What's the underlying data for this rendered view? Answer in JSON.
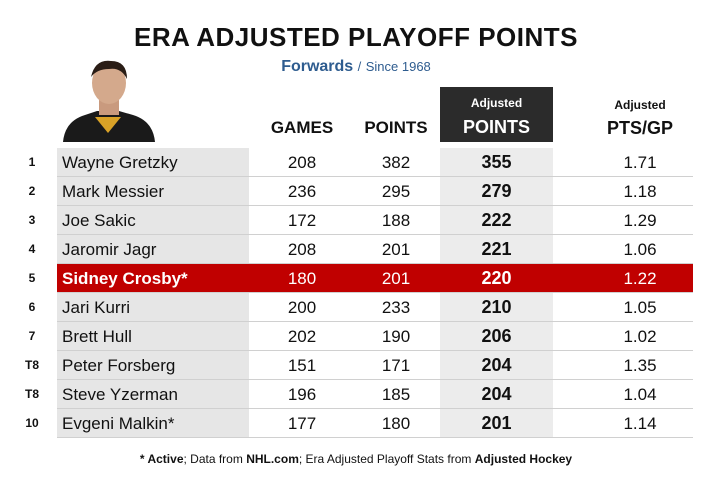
{
  "header": {
    "title": "ERA ADJUSTED PLAYOFF POINTS",
    "subtitle": "Forwards",
    "subtitle_sep": "/",
    "subtitle_note": "Since 1968"
  },
  "table": {
    "columns": {
      "games": "GAMES",
      "points": "POINTS",
      "adj_top": "Adjusted",
      "adj_main": "POINTS",
      "ptsgp_top": "Adjusted",
      "ptsgp_main": "PTS/GP"
    },
    "rows": [
      {
        "rank": "1",
        "name": "Wayne Gretzky",
        "games": 208,
        "points": 382,
        "adj_points": 355,
        "pts_gp": 1.71,
        "highlight": false
      },
      {
        "rank": "2",
        "name": "Mark Messier",
        "games": 236,
        "points": 295,
        "adj_points": 279,
        "pts_gp": 1.18,
        "highlight": false
      },
      {
        "rank": "3",
        "name": "Joe Sakic",
        "games": 172,
        "points": 188,
        "adj_points": 222,
        "pts_gp": 1.29,
        "highlight": false
      },
      {
        "rank": "4",
        "name": "Jaromir Jagr",
        "games": 208,
        "points": 201,
        "adj_points": 221,
        "pts_gp": 1.06,
        "highlight": false
      },
      {
        "rank": "5",
        "name": "Sidney Crosby*",
        "games": 180,
        "points": 201,
        "adj_points": 220,
        "pts_gp": 1.22,
        "highlight": true
      },
      {
        "rank": "6",
        "name": "Jari Kurri",
        "games": 200,
        "points": 233,
        "adj_points": 210,
        "pts_gp": 1.05,
        "highlight": false
      },
      {
        "rank": "7",
        "name": "Brett Hull",
        "games": 202,
        "points": 190,
        "adj_points": 206,
        "pts_gp": 1.02,
        "highlight": false
      },
      {
        "rank": "T8",
        "name": "Peter Forsberg",
        "games": 151,
        "points": 171,
        "adj_points": 204,
        "pts_gp": 1.35,
        "highlight": false
      },
      {
        "rank": "T8",
        "name": "Steve Yzerman",
        "games": 196,
        "points": 185,
        "adj_points": 204,
        "pts_gp": 1.04,
        "highlight": false
      },
      {
        "rank": "10",
        "name": "Evgeni Malkin*",
        "games": 177,
        "points": 180,
        "adj_points": 201,
        "pts_gp": 1.14,
        "highlight": false
      }
    ]
  },
  "footer": [
    {
      "text": "* ",
      "bold": true
    },
    {
      "text": "Active",
      "bold": true
    },
    {
      "text": "; Data from ",
      "bold": false
    },
    {
      "text": "NHL.com",
      "bold": true
    },
    {
      "text": "; Era Adjusted Playoff Stats from ",
      "bold": false
    },
    {
      "text": "Adjusted Hockey",
      "bold": true
    }
  ]
}
